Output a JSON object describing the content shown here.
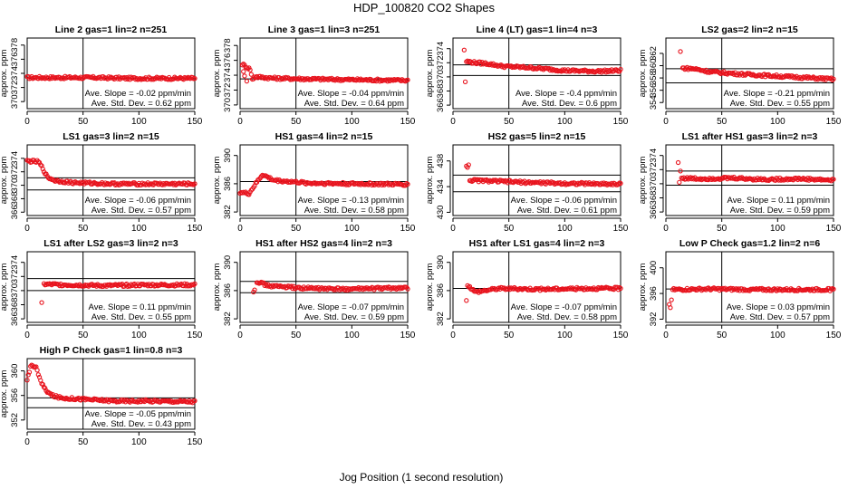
{
  "figure": {
    "title": "HDP_100820  CO2 Shapes",
    "xlabel": "Jog Position (1 second resolution)"
  },
  "chart_data": [
    {
      "type": "scatter",
      "title": "Line 2 gas=1 lin=2 n=251",
      "ylabel": "approx. ppm",
      "xlim": [
        0,
        150
      ],
      "ylim": [
        369,
        379
      ],
      "xticks": [
        0,
        50,
        100,
        150
      ],
      "yticks": [
        370,
        372,
        374,
        376,
        378
      ],
      "vline": 50,
      "hlines": [
        373.3
      ],
      "slope_text": "Ave. Slope = -0.02  ppm/min",
      "std_text": "Ave. Std. Dev. = 0.62  ppm",
      "series": [
        {
          "name": "",
          "start": 0,
          "end": 150,
          "values": [
            [
              0,
              373.4
            ],
            [
              30,
              373.4
            ],
            [
              60,
              373.4
            ],
            [
              90,
              373.3
            ],
            [
              120,
              373.3
            ],
            [
              150,
              373.3
            ]
          ]
        }
      ]
    },
    {
      "type": "scatter",
      "title": "Line 3 gas=1 lin=3 n=251",
      "ylabel": "approx. ppm",
      "xlim": [
        0,
        150
      ],
      "ylim": [
        369.5,
        379
      ],
      "xticks": [
        0,
        50,
        100,
        150
      ],
      "yticks": [
        370,
        372,
        374,
        376,
        378
      ],
      "vline": 50,
      "hlines": [
        373.5
      ],
      "slope_text": "Ave. Slope = -0.04  ppm/min",
      "std_text": "Ave. Std. Dev. = 0.64  ppm",
      "series": [
        {
          "name": "",
          "start": 2,
          "end": 150,
          "values": [
            [
              2,
              375.5
            ],
            [
              5,
              375.2
            ],
            [
              9,
              374.8
            ],
            [
              11,
              373.4
            ],
            [
              13,
              373.8
            ],
            [
              30,
              373.6
            ],
            [
              60,
              373.5
            ],
            [
              100,
              373.4
            ],
            [
              150,
              373.3
            ]
          ]
        }
      ],
      "outliers": [
        [
          3,
          374.5
        ],
        [
          6,
          373.2
        ],
        [
          4,
          373.9
        ]
      ]
    },
    {
      "type": "scatter",
      "title": "Line 4 (LT) gas=1 lin=4 n=3",
      "ylabel": "approx. ppm",
      "xlim": [
        0,
        150
      ],
      "ylim": [
        365.5,
        375.5
      ],
      "xticks": [
        0,
        50,
        100,
        150
      ],
      "yticks": [
        366,
        368,
        370,
        372,
        374
      ],
      "vline": 50,
      "hlines": [
        371.7,
        370.2
      ],
      "slope_text": "Ave. Slope = -0.4  ppm/min",
      "std_text": "Ave. Std. Dev. = 0.6  ppm",
      "series": [
        {
          "name": "",
          "start": 12,
          "end": 150,
          "values": [
            [
              12,
              372.2
            ],
            [
              20,
              372.0
            ],
            [
              30,
              371.9
            ],
            [
              45,
              371.5
            ],
            [
              70,
              371.3
            ],
            [
              100,
              370.9
            ],
            [
              130,
              370.8
            ],
            [
              150,
              370.9
            ]
          ]
        }
      ],
      "outliers": [
        [
          10,
          373.8
        ],
        [
          11,
          369.3
        ]
      ]
    },
    {
      "type": "scatter",
      "title": "LS2 gas=2 lin=2 n=15",
      "ylabel": "approx. ppm",
      "xlim": [
        0,
        150
      ],
      "ylim": [
        353,
        364.5
      ],
      "xticks": [
        0,
        50,
        100,
        150
      ],
      "yticks": [
        354,
        356,
        358,
        360,
        362
      ],
      "vline": 50,
      "hlines": [
        359.5,
        357.2
      ],
      "slope_text": "Ave. Slope = -0.21  ppm/min",
      "std_text": "Ave. Std. Dev. = 0.55  ppm",
      "series": [
        {
          "name": "",
          "start": 15,
          "end": 150,
          "values": [
            [
              15,
              359.6
            ],
            [
              25,
              359.5
            ],
            [
              40,
              359.0
            ],
            [
              70,
              358.6
            ],
            [
              110,
              358.2
            ],
            [
              150,
              357.8
            ]
          ]
        }
      ],
      "outliers": [
        [
          13,
          362.3
        ]
      ]
    },
    {
      "type": "scatter",
      "title": "LS1 gas=3 lin=2 n=15",
      "ylabel": "approx. ppm",
      "xlim": [
        0,
        150
      ],
      "ylim": [
        365.5,
        376
      ],
      "xticks": [
        0,
        50,
        100,
        150
      ],
      "yticks": [
        366,
        368,
        370,
        372,
        374
      ],
      "vline": 50,
      "hlines": [
        371.1,
        369.3
      ],
      "slope_text": "Ave. Slope = -0.06  ppm/min",
      "std_text": "Ave. Std. Dev. = 0.57  ppm",
      "series": [
        {
          "name": "",
          "start": 0,
          "end": 150,
          "values": [
            [
              0,
              373.6
            ],
            [
              10,
              373.5
            ],
            [
              14,
              372.5
            ],
            [
              18,
              371.2
            ],
            [
              25,
              370.7
            ],
            [
              40,
              370.4
            ],
            [
              80,
              370.2
            ],
            [
              120,
              370.2
            ],
            [
              150,
              370.2
            ]
          ]
        }
      ]
    },
    {
      "type": "scatter",
      "title": "HS1 gas=4 lin=2 n=15",
      "ylabel": "approx. ppm",
      "xlim": [
        0,
        150
      ],
      "ylim": [
        381.5,
        391.5
      ],
      "xticks": [
        0,
        50,
        100,
        150
      ],
      "yticks": [
        382,
        386,
        390
      ],
      "vline": 50,
      "hlines": [
        386.3
      ],
      "slope_text": "Ave. Slope = -0.13  ppm/min",
      "std_text": "Ave. Std. Dev. = 0.58  ppm",
      "series": [
        {
          "name": "",
          "start": 0,
          "end": 150,
          "values": [
            [
              0,
              384.8
            ],
            [
              8,
              384.6
            ],
            [
              14,
              386.0
            ],
            [
              20,
              387.3
            ],
            [
              30,
              386.5
            ],
            [
              60,
              386.1
            ],
            [
              100,
              386.0
            ],
            [
              150,
              385.9
            ]
          ]
        }
      ]
    },
    {
      "type": "scatter",
      "title": "HS2 gas=5 lin=2 n=15",
      "ylabel": "approx. ppm",
      "xlim": [
        0,
        150
      ],
      "ylim": [
        429.5,
        440.5
      ],
      "xticks": [
        0,
        50,
        100,
        150
      ],
      "yticks": [
        430,
        434,
        438
      ],
      "vline": 50,
      "hlines": [
        435.8,
        433.2
      ],
      "slope_text": "Ave. Slope = -0.06  ppm/min",
      "std_text": "Ave. Std. Dev. = 0.61  ppm",
      "series": [
        {
          "name": "",
          "start": 15,
          "end": 150,
          "values": [
            [
              15,
              435.0
            ],
            [
              30,
              434.9
            ],
            [
              60,
              434.7
            ],
            [
              100,
              434.5
            ],
            [
              150,
              434.4
            ]
          ]
        }
      ],
      "outliers": [
        [
          12,
          437.2
        ],
        [
          13,
          437.0
        ],
        [
          14,
          437.4
        ]
      ]
    },
    {
      "type": "scatter",
      "title": "LS1 after HS1 gas=3 lin=2 n=3",
      "ylabel": "approx. ppm",
      "xlim": [
        0,
        150
      ],
      "ylim": [
        365.5,
        375.5
      ],
      "xticks": [
        0,
        50,
        100,
        150
      ],
      "yticks": [
        366,
        368,
        370,
        372,
        374
      ],
      "vline": 50,
      "hlines": [
        371.8,
        369.8
      ],
      "slope_text": "Ave. Slope = 0.11  ppm/min",
      "std_text": "Ave. Std. Dev. = 0.59  ppm",
      "series": [
        {
          "name": "",
          "start": 14,
          "end": 150,
          "values": [
            [
              14,
              370.8
            ],
            [
              30,
              370.7
            ],
            [
              60,
              370.8
            ],
            [
              90,
              370.6
            ],
            [
              120,
              370.7
            ],
            [
              150,
              370.5
            ]
          ]
        }
      ],
      "outliers": [
        [
          11,
          373.0
        ],
        [
          12,
          370.2
        ],
        [
          13,
          371.8
        ]
      ]
    },
    {
      "type": "scatter",
      "title": "LS1 after LS2 gas=3 lin=2 n=3",
      "ylabel": "approx. ppm",
      "xlim": [
        0,
        150
      ],
      "ylim": [
        365.5,
        375.5
      ],
      "xticks": [
        0,
        50,
        100,
        150
      ],
      "yticks": [
        366,
        368,
        370,
        372,
        374
      ],
      "vline": 50,
      "hlines": [
        371.7,
        370.0
      ],
      "slope_text": "Ave. Slope = 0.11  ppm/min",
      "std_text": "Ave. Std. Dev. = 0.55  ppm",
      "series": [
        {
          "name": "",
          "start": 15,
          "end": 150,
          "values": [
            [
              15,
              370.9
            ],
            [
              40,
              370.8
            ],
            [
              70,
              370.7
            ],
            [
              100,
              370.8
            ],
            [
              150,
              370.8
            ]
          ]
        }
      ],
      "outliers": [
        [
          13,
          368.3
        ]
      ]
    },
    {
      "type": "scatter",
      "title": "HS1 after HS2 gas=4 lin=2 n=3",
      "ylabel": "approx. ppm",
      "xlim": [
        0,
        150
      ],
      "ylim": [
        381.5,
        391.5
      ],
      "xticks": [
        0,
        50,
        100,
        150
      ],
      "yticks": [
        382,
        386,
        390
      ],
      "vline": 50,
      "hlines": [
        387.3,
        385.7
      ],
      "slope_text": "Ave. Slope = -0.07  ppm/min",
      "std_text": "Ave. Std. Dev. = 0.59  ppm",
      "series": [
        {
          "name": "",
          "start": 15,
          "end": 150,
          "values": [
            [
              15,
              387.3
            ],
            [
              25,
              386.7
            ],
            [
              50,
              386.4
            ],
            [
              90,
              386.2
            ],
            [
              120,
              386.3
            ],
            [
              150,
              386.4
            ]
          ]
        }
      ],
      "outliers": [
        [
          12,
          385.8
        ],
        [
          13,
          386.1
        ]
      ]
    },
    {
      "type": "scatter",
      "title": "HS1 after LS1 gas=4 lin=2 n=3",
      "ylabel": "approx. ppm",
      "xlim": [
        0,
        150
      ],
      "ylim": [
        381.5,
        391.5
      ],
      "xticks": [
        0,
        50,
        100,
        150
      ],
      "yticks": [
        382,
        386,
        390
      ],
      "vline": 50,
      "hlines": [
        386.3
      ],
      "slope_text": "Ave. Slope = -0.07  ppm/min",
      "std_text": "Ave. Std. Dev. = 0.58  ppm",
      "series": [
        {
          "name": "",
          "start": 13,
          "end": 150,
          "values": [
            [
              13,
              386.8
            ],
            [
              20,
              385.8
            ],
            [
              40,
              386.3
            ],
            [
              80,
              386.2
            ],
            [
              120,
              386.3
            ],
            [
              150,
              386.3
            ]
          ]
        }
      ],
      "outliers": [
        [
          12,
          384.6
        ]
      ]
    },
    {
      "type": "scatter",
      "title": "Low P Check gas=1.2 lin=2 n=6",
      "ylabel": "approx. ppm",
      "xlim": [
        0,
        150
      ],
      "ylim": [
        391.5,
        402.5
      ],
      "xticks": [
        0,
        50,
        100,
        150
      ],
      "yticks": [
        392,
        396,
        400
      ],
      "vline": 50,
      "hlines": [
        396.7
      ],
      "slope_text": "Ave. Slope = 0.03  ppm/min",
      "std_text": "Ave. Std. Dev. = 0.57  ppm",
      "series": [
        {
          "name": "",
          "start": 6,
          "end": 150,
          "values": [
            [
              6,
              396.6
            ],
            [
              40,
              396.7
            ],
            [
              80,
              396.6
            ],
            [
              120,
              396.6
            ],
            [
              150,
              396.6
            ]
          ]
        }
      ],
      "outliers": [
        [
          3,
          394.3
        ],
        [
          4,
          393.8
        ],
        [
          5,
          395.0
        ]
      ]
    },
    {
      "type": "scatter",
      "title": "High P Check gas=1 lin=0.8 n=3",
      "ylabel": "approx. ppm",
      "xlim": [
        0,
        150
      ],
      "ylim": [
        350.5,
        362
      ],
      "xticks": [
        0,
        50,
        100,
        150
      ],
      "yticks": [
        352,
        356,
        360
      ],
      "vline": 50,
      "hlines": [
        355.6,
        354.0
      ],
      "slope_text": "Ave. Slope = -0.05  ppm/min",
      "std_text": "Ave. Std. Dev. = 0.43  ppm",
      "series": [
        {
          "name": "",
          "start": 0,
          "end": 150,
          "values": [
            [
              0,
              358.4
            ],
            [
              3,
              360.8
            ],
            [
              8,
              360.7
            ],
            [
              12,
              358.3
            ],
            [
              16,
              357.0
            ],
            [
              22,
              356.0
            ],
            [
              30,
              355.6
            ],
            [
              50,
              355.4
            ],
            [
              80,
              355.1
            ],
            [
              110,
              355.1
            ],
            [
              150,
              355.0
            ]
          ]
        }
      ]
    }
  ]
}
